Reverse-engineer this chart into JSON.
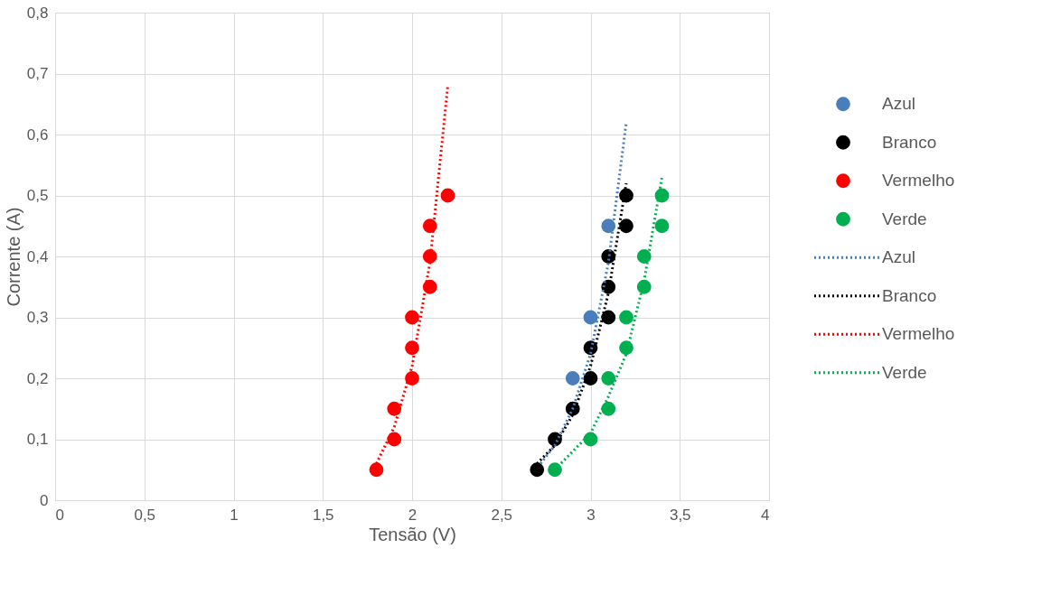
{
  "chart_data": {
    "type": "scatter",
    "xlabel": "Tensão (V)",
    "ylabel": "Corrente (A)",
    "xlim": [
      0,
      4
    ],
    "ylim": [
      0,
      0.8
    ],
    "xticks": [
      0,
      {
        "value": 0.5,
        "label": "0,5"
      },
      1,
      {
        "value": 1.5,
        "label": "1,5"
      },
      2,
      {
        "value": 2.5,
        "label": "2,5"
      },
      3,
      {
        "value": 3.5,
        "label": "3,5"
      },
      4
    ],
    "yticks": [
      0,
      {
        "value": 0.1,
        "label": "0,1"
      },
      {
        "value": 0.2,
        "label": "0,2"
      },
      {
        "value": 0.3,
        "label": "0,3"
      },
      {
        "value": 0.4,
        "label": "0,4"
      },
      {
        "value": 0.5,
        "label": "0,5"
      },
      {
        "value": 0.6,
        "label": "0,6"
      },
      {
        "value": 0.7,
        "label": "0,7"
      },
      {
        "value": 0.8,
        "label": "0,8"
      }
    ],
    "grid": true,
    "legend": "right",
    "series": [
      {
        "name": "Azul",
        "marker": "circle",
        "color": "#4a7ebb",
        "x": [
          2.9,
          3.0,
          3.1
        ],
        "values": [
          0.2,
          0.3,
          0.45
        ]
      },
      {
        "name": "Branco",
        "marker": "circle",
        "color": "#000000",
        "x": [
          2.7,
          2.8,
          2.9,
          3.0,
          3.0,
          3.1,
          3.1,
          3.1,
          3.2,
          3.2
        ],
        "values": [
          0.05,
          0.1,
          0.15,
          0.2,
          0.25,
          0.3,
          0.35,
          0.4,
          0.45,
          0.5
        ]
      },
      {
        "name": "Vermelho",
        "marker": "circle",
        "color": "#ff0000",
        "x": [
          1.8,
          1.9,
          1.9,
          2.0,
          2.0,
          2.0,
          2.1,
          2.1,
          2.1,
          2.2
        ],
        "values": [
          0.05,
          0.1,
          0.15,
          0.2,
          0.25,
          0.3,
          0.35,
          0.4,
          0.45,
          0.5
        ]
      },
      {
        "name": "Verde",
        "marker": "circle",
        "color": "#00b050",
        "x": [
          2.8,
          3.0,
          3.1,
          3.1,
          3.2,
          3.2,
          3.3,
          3.3,
          3.4,
          3.4
        ],
        "values": [
          0.05,
          0.1,
          0.15,
          0.2,
          0.25,
          0.3,
          0.35,
          0.4,
          0.45,
          0.5
        ]
      },
      {
        "name": "Azul",
        "type": "line",
        "marker": "none",
        "line_style": "dotted",
        "color": "#4a7ebb",
        "x": [
          2.72,
          2.8,
          2.9,
          3.0,
          3.1,
          3.2
        ],
        "values": [
          0.06,
          0.09,
          0.15,
          0.24,
          0.39,
          0.62
        ]
      },
      {
        "name": "Branco",
        "type": "line",
        "marker": "none",
        "line_style": "dotted",
        "color": "#000000",
        "x": [
          2.7,
          2.8,
          2.9,
          3.0,
          3.1,
          3.2
        ],
        "values": [
          0.06,
          0.09,
          0.14,
          0.22,
          0.34,
          0.52
        ]
      },
      {
        "name": "Vermelho",
        "type": "line",
        "marker": "none",
        "line_style": "dotted",
        "color": "#ff0000",
        "x": [
          1.8,
          1.9,
          2.0,
          2.1,
          2.2
        ],
        "values": [
          0.06,
          0.12,
          0.22,
          0.39,
          0.68
        ]
      },
      {
        "name": "Verde",
        "type": "line",
        "marker": "none",
        "line_style": "dotted",
        "color": "#00b050",
        "x": [
          2.8,
          2.9,
          3.0,
          3.1,
          3.2,
          3.3,
          3.4
        ],
        "values": [
          0.05,
          0.08,
          0.11,
          0.17,
          0.24,
          0.36,
          0.53
        ]
      }
    ]
  }
}
